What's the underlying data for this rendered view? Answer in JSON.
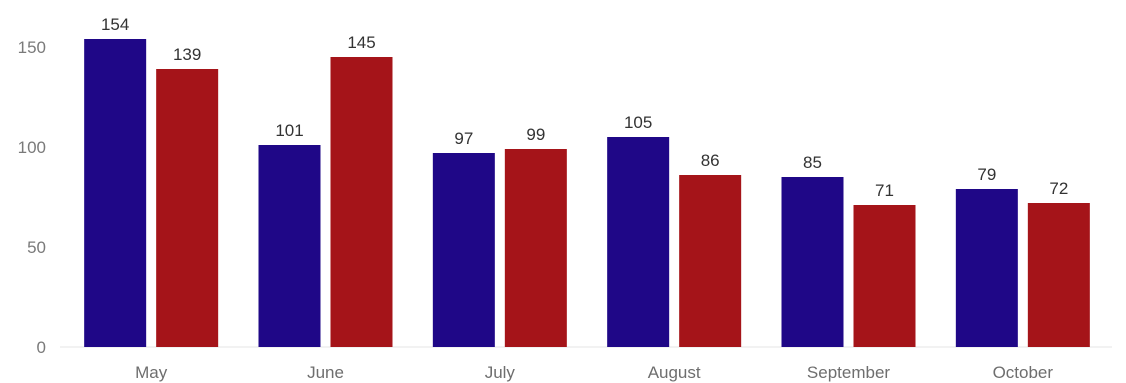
{
  "chart_data": {
    "type": "bar",
    "categories": [
      "May",
      "June",
      "July",
      "August",
      "September",
      "October"
    ],
    "series": [
      {
        "values": [
          154,
          101,
          97,
          105,
          85,
          79
        ],
        "color": "#1f0787"
      },
      {
        "values": [
          139,
          145,
          99,
          86,
          71,
          72
        ],
        "color": "#a51419"
      }
    ],
    "yticks": [
      0,
      50,
      100,
      150
    ],
    "ylim": [
      0,
      150
    ],
    "grid": false,
    "data_labels": true,
    "title": "",
    "xlabel": "",
    "ylabel": ""
  }
}
